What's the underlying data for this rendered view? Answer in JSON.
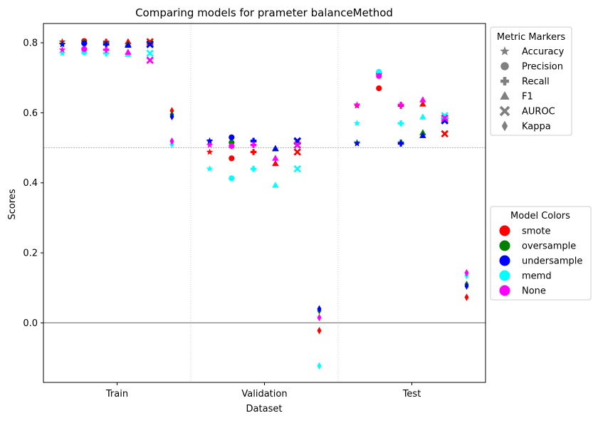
{
  "chart_data": {
    "type": "scatter",
    "title": "Comparing models for prameter balanceMethod",
    "xlabel": "Dataset",
    "ylabel": "Scores",
    "categories": [
      "Train",
      "Validation",
      "Test"
    ],
    "ylim": [
      -0.17,
      0.855
    ],
    "yticks": [
      "0.0",
      "0.2",
      "0.4",
      "0.6",
      "0.8"
    ],
    "ytick_values": [
      0.0,
      0.2,
      0.4,
      0.6,
      0.8
    ],
    "reference_lines": [
      0.5,
      0.0
    ],
    "metrics": [
      "Accuracy",
      "Precision",
      "Recall",
      "F1",
      "AUROC",
      "Kappa"
    ],
    "metric_markers": [
      "star",
      "circle",
      "plus",
      "triangle",
      "x",
      "diamond"
    ],
    "models": [
      "smote",
      "oversample",
      "undersample",
      "memd",
      "None"
    ],
    "model_colors": [
      "#ff0000",
      "#008000",
      "#0000ff",
      "#00ffff",
      "#ff00ff"
    ],
    "legend_metric_title": "Metric Markers",
    "legend_model_title": "Model Colors",
    "legend_placement": "outside-right",
    "grid": false,
    "series": [
      {
        "dataset": "Train",
        "metric": "Accuracy",
        "values": {
          "smote": 0.803,
          "oversample": 0.797,
          "undersample": 0.795,
          "memd": 0.77,
          "None": 0.78
        }
      },
      {
        "dataset": "Train",
        "metric": "Precision",
        "values": {
          "smote": 0.805,
          "oversample": 0.8,
          "undersample": 0.798,
          "memd": 0.773,
          "None": 0.782
        }
      },
      {
        "dataset": "Train",
        "metric": "Recall",
        "values": {
          "smote": 0.803,
          "oversample": 0.797,
          "undersample": 0.795,
          "memd": 0.77,
          "None": 0.78
        }
      },
      {
        "dataset": "Train",
        "metric": "F1",
        "values": {
          "smote": 0.803,
          "oversample": 0.796,
          "undersample": 0.793,
          "memd": 0.767,
          "None": 0.773
        }
      },
      {
        "dataset": "Train",
        "metric": "AUROC",
        "values": {
          "smote": 0.803,
          "oversample": 0.797,
          "undersample": 0.795,
          "memd": 0.77,
          "None": 0.75
        }
      },
      {
        "dataset": "Train",
        "metric": "Kappa",
        "values": {
          "smote": 0.606,
          "oversample": 0.595,
          "undersample": 0.589,
          "memd": 0.51,
          "None": 0.519
        }
      },
      {
        "dataset": "Validation",
        "metric": "Accuracy",
        "values": {
          "smote": 0.488,
          "oversample": 0.518,
          "undersample": 0.52,
          "memd": 0.44,
          "None": 0.508
        }
      },
      {
        "dataset": "Validation",
        "metric": "Precision",
        "values": {
          "smote": 0.47,
          "oversample": 0.515,
          "undersample": 0.53,
          "memd": 0.413,
          "None": 0.505
        }
      },
      {
        "dataset": "Validation",
        "metric": "Recall",
        "values": {
          "smote": 0.488,
          "oversample": 0.518,
          "undersample": 0.52,
          "memd": 0.44,
          "None": 0.508
        }
      },
      {
        "dataset": "Validation",
        "metric": "F1",
        "values": {
          "smote": 0.455,
          "oversample": 0.497,
          "undersample": 0.498,
          "memd": 0.393,
          "None": 0.47
        }
      },
      {
        "dataset": "Validation",
        "metric": "AUROC",
        "values": {
          "smote": 0.488,
          "oversample": 0.518,
          "undersample": 0.52,
          "memd": 0.44,
          "None": 0.508
        }
      },
      {
        "dataset": "Validation",
        "metric": "Kappa",
        "values": {
          "smote": -0.022,
          "oversample": 0.035,
          "undersample": 0.04,
          "memd": -0.123,
          "None": 0.015
        }
      },
      {
        "dataset": "Test",
        "metric": "Accuracy",
        "values": {
          "smote": 0.62,
          "oversample": 0.515,
          "undersample": 0.512,
          "memd": 0.57,
          "None": 0.623
        }
      },
      {
        "dataset": "Test",
        "metric": "Precision",
        "values": {
          "smote": 0.67,
          "oversample": 0.712,
          "undersample": 0.715,
          "memd": 0.717,
          "None": 0.705
        }
      },
      {
        "dataset": "Test",
        "metric": "Recall",
        "values": {
          "smote": 0.62,
          "oversample": 0.515,
          "undersample": 0.512,
          "memd": 0.57,
          "None": 0.623
        }
      },
      {
        "dataset": "Test",
        "metric": "F1",
        "values": {
          "smote": 0.625,
          "oversample": 0.543,
          "undersample": 0.535,
          "memd": 0.588,
          "None": 0.637
        }
      },
      {
        "dataset": "Test",
        "metric": "AUROC",
        "values": {
          "smote": 0.54,
          "oversample": 0.58,
          "undersample": 0.577,
          "memd": 0.592,
          "None": 0.585
        }
      },
      {
        "dataset": "Test",
        "metric": "Kappa",
        "values": {
          "smote": 0.073,
          "oversample": 0.11,
          "undersample": 0.105,
          "memd": 0.135,
          "None": 0.143
        }
      }
    ]
  }
}
